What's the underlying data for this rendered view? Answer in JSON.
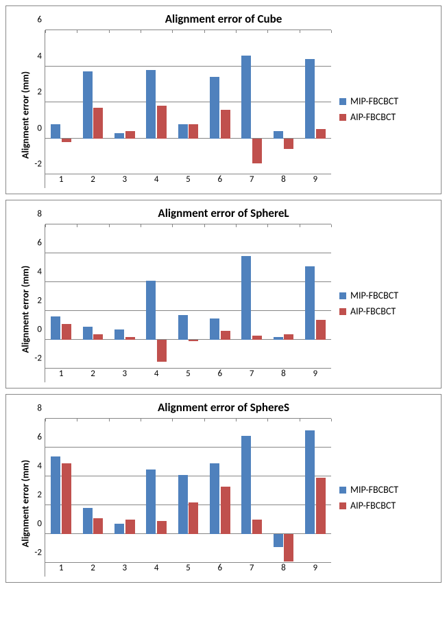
{
  "global": {
    "series_colors": {
      "mip": "#4f81bd",
      "aip": "#c0504d"
    },
    "grid_color": "#868686",
    "background_color": "#ffffff",
    "bar_rel_width": 0.3,
    "bar_gap_rel": 0.04,
    "title_fontsize": 17,
    "label_fontsize": 14,
    "tick_fontsize": 13,
    "ylabel": "Alignment error (mm)",
    "legend": {
      "items": [
        {
          "key": "mip",
          "label": "MIP-FBCBCT"
        },
        {
          "key": "aip",
          "label": "AIP-FBCBCT"
        }
      ]
    }
  },
  "charts": [
    {
      "id": "cube",
      "title": "Alignment error of Cube",
      "type": "bar",
      "categories": [
        "1",
        "2",
        "3",
        "4",
        "5",
        "6",
        "7",
        "8",
        "9"
      ],
      "ylim": [
        -2,
        6
      ],
      "ytick_step": 2,
      "series": [
        {
          "key": "mip",
          "values": [
            0.8,
            3.7,
            0.3,
            3.8,
            0.8,
            3.4,
            4.6,
            0.4,
            4.4
          ]
        },
        {
          "key": "aip",
          "values": [
            -0.2,
            1.7,
            0.4,
            1.8,
            0.8,
            1.6,
            -1.4,
            -0.6,
            0.5
          ]
        }
      ]
    },
    {
      "id": "spherel",
      "title": "Alignment error of SphereL",
      "type": "bar",
      "categories": [
        "1",
        "2",
        "3",
        "4",
        "5",
        "6",
        "7",
        "8",
        "9"
      ],
      "ylim": [
        -2,
        8
      ],
      "ytick_step": 2,
      "series": [
        {
          "key": "mip",
          "values": [
            1.6,
            0.9,
            0.7,
            4.1,
            1.7,
            1.5,
            5.8,
            0.2,
            5.1
          ]
        },
        {
          "key": "aip",
          "values": [
            1.1,
            0.4,
            0.2,
            -1.5,
            -0.1,
            0.6,
            0.3,
            0.4,
            1.4
          ]
        }
      ]
    },
    {
      "id": "spheres",
      "title": "Alignment error of SphereS",
      "type": "bar",
      "categories": [
        "1",
        "2",
        "3",
        "4",
        "5",
        "6",
        "7",
        "8",
        "9"
      ],
      "ylim": [
        -2,
        8
      ],
      "ytick_step": 2,
      "series": [
        {
          "key": "mip",
          "values": [
            5.4,
            1.8,
            0.7,
            4.5,
            4.1,
            4.9,
            6.8,
            -0.9,
            7.2
          ]
        },
        {
          "key": "aip",
          "values": [
            4.9,
            1.1,
            1.0,
            0.9,
            2.2,
            3.3,
            1.0,
            -1.9,
            3.9
          ]
        }
      ]
    }
  ]
}
